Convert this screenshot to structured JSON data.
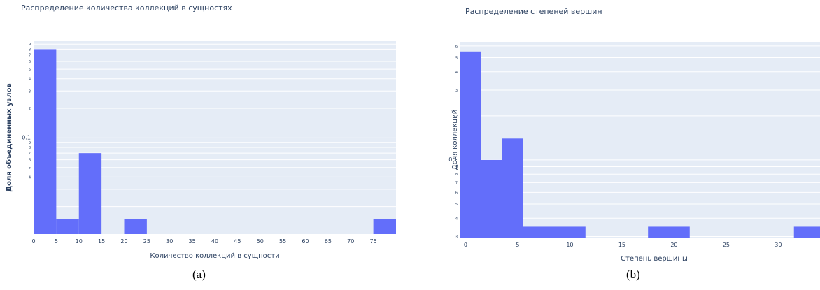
{
  "captions": [
    "(a)",
    "(b)"
  ],
  "chart_data": [
    {
      "type": "bar",
      "title": "Распределение количества коллекций в сущностях",
      "xlabel": "Количество коллекций в сущности",
      "ylabel": "Доля объединенных узлов",
      "y_scale": "log",
      "grid": true,
      "xlim": [
        0,
        80
      ],
      "xticks": [
        "0",
        "5",
        "10",
        "15",
        "20",
        "25",
        "30",
        "35",
        "40",
        "45",
        "50",
        "55",
        "60",
        "65",
        "70",
        "75"
      ],
      "bins": [
        {
          "x0": 0,
          "x1": 5,
          "value": 0.8
        },
        {
          "x0": 5,
          "x1": 10,
          "value": 0.015
        },
        {
          "x0": 10,
          "x1": 15,
          "value": 0.07
        },
        {
          "x0": 20,
          "x1": 25,
          "value": 0.015
        },
        {
          "x0": 75,
          "x1": 80,
          "value": 0.015
        }
      ],
      "bar_color": "#636efa",
      "plot_bg": "#e5ecf6"
    },
    {
      "type": "bar",
      "title": "Распределение степеней вершин",
      "xlabel": "Степень вершины",
      "ylabel": "Доля коллекций",
      "y_scale": "log",
      "grid": true,
      "xlim": [
        -0.5,
        34
      ],
      "xticks": [
        "0",
        "5",
        "10",
        "15",
        "20",
        "25",
        "30"
      ],
      "bins": [
        {
          "x0": -0.5,
          "x1": 1.5,
          "value": 0.55
        },
        {
          "x0": 1.5,
          "x1": 3.5,
          "value": 0.1
        },
        {
          "x0": 3.5,
          "x1": 5.5,
          "value": 0.14
        },
        {
          "x0": 5.5,
          "x1": 11.5,
          "value": 0.035
        },
        {
          "x0": 17.5,
          "x1": 21.5,
          "value": 0.035
        },
        {
          "x0": 31.5,
          "x1": 34,
          "value": 0.035
        }
      ],
      "bar_color": "#636efa",
      "plot_bg": "#e5ecf6"
    }
  ]
}
